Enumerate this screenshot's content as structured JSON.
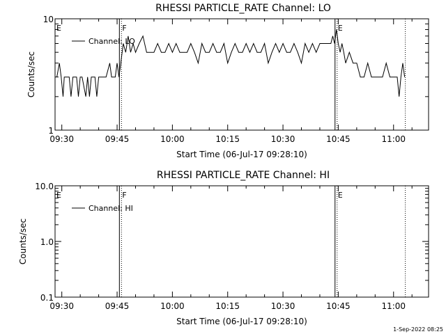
{
  "footer": "1-Sep-2022 08:25",
  "chart_data": [
    {
      "type": "line",
      "title": "RHESSI PARTICLE_RATE Channel: LO",
      "xlabel": "Start Time (06-Jul-17 09:28:10)",
      "ylabel": "Counts/sec",
      "yscale": "log",
      "ylim": [
        1,
        10
      ],
      "ytick_labels": [
        "1",
        "10"
      ],
      "xlim": [
        "09:28:10",
        "11:09:30"
      ],
      "xtick_labels": [
        "09:30",
        "09:45",
        "10:00",
        "10:15",
        "10:30",
        "10:45",
        "11:00"
      ],
      "legend": {
        "position": "top-left",
        "entries": [
          "Channel: LO"
        ]
      },
      "markers": [
        {
          "label": "E",
          "time": "09:28:10",
          "style": "none"
        },
        {
          "label": "F",
          "time": "09:46:00",
          "style": "solid+dotted"
        },
        {
          "label": "E",
          "time": "10:44:30",
          "style": "solid+dotted"
        },
        {
          "label": "",
          "time": "11:03:00",
          "style": "dotted"
        }
      ],
      "series": [
        {
          "name": "Channel: LO",
          "x": [
            "09:28:40",
            "09:29:20",
            "09:29:50",
            "09:30:20",
            "09:30:40",
            "09:31:10",
            "09:32:00",
            "09:32:30",
            "09:33:00",
            "09:34:00",
            "09:34:30",
            "09:35:00",
            "09:35:30",
            "09:36:30",
            "09:37:00",
            "09:37:30",
            "09:38:00",
            "09:39:00",
            "09:39:30",
            "09:40:00",
            "09:40:30",
            "09:41:00",
            "09:41:30",
            "09:42:00",
            "09:43:00",
            "09:43:30",
            "09:44:00",
            "09:44:30",
            "09:45:00",
            "09:45:30",
            "09:46:00",
            "09:46:40",
            "09:47:20",
            "09:48:00",
            "09:48:40",
            "09:49:20",
            "09:50:00",
            "09:51:00",
            "09:52:00",
            "09:53:00",
            "09:54:00",
            "09:55:00",
            "09:56:00",
            "09:57:00",
            "09:58:00",
            "09:59:00",
            "10:00:00",
            "10:01:00",
            "10:02:00",
            "10:03:00",
            "10:04:00",
            "10:05:00",
            "10:06:00",
            "10:07:00",
            "10:08:00",
            "10:09:00",
            "10:10:00",
            "10:11:00",
            "10:12:00",
            "10:13:00",
            "10:14:00",
            "10:15:00",
            "10:16:00",
            "10:17:00",
            "10:18:00",
            "10:19:00",
            "10:20:00",
            "10:21:00",
            "10:22:00",
            "10:23:00",
            "10:24:00",
            "10:25:00",
            "10:26:00",
            "10:27:00",
            "10:28:00",
            "10:29:00",
            "10:30:00",
            "10:31:00",
            "10:32:00",
            "10:33:00",
            "10:34:00",
            "10:35:00",
            "10:36:00",
            "10:37:00",
            "10:38:00",
            "10:39:00",
            "10:40:00",
            "10:41:00",
            "10:42:00",
            "10:43:00",
            "10:43:30",
            "10:44:00",
            "10:44:30",
            "10:45:00",
            "10:45:30",
            "10:46:00",
            "10:46:30",
            "10:47:00",
            "10:48:00",
            "10:49:00",
            "10:50:00",
            "10:51:00",
            "10:52:00",
            "10:53:00",
            "10:54:00",
            "10:55:00",
            "10:56:00",
            "10:57:00",
            "10:58:00",
            "10:59:00",
            "11:00:00",
            "11:01:00",
            "11:01:30",
            "11:02:00",
            "11:02:30",
            "11:03:00"
          ],
          "y": [
            3,
            4,
            3,
            2,
            3,
            3,
            3,
            2,
            3,
            3,
            2,
            3,
            3,
            2,
            3,
            2,
            3,
            3,
            2,
            3,
            3,
            3,
            3,
            3,
            4,
            3,
            3,
            3,
            4,
            3,
            4,
            6,
            5,
            7,
            5,
            6,
            5,
            6,
            7,
            5,
            5,
            5,
            6,
            5,
            5,
            6,
            5,
            6,
            5,
            5,
            5,
            6,
            5,
            4,
            6,
            5,
            5,
            6,
            5,
            5,
            6,
            4,
            5,
            6,
            5,
            5,
            6,
            5,
            6,
            5,
            5,
            6,
            4,
            5,
            6,
            5,
            6,
            5,
            5,
            6,
            5,
            4,
            6,
            5,
            6,
            5,
            6,
            6,
            6,
            6,
            7,
            6,
            8,
            6,
            5,
            6,
            5,
            4,
            5,
            4,
            4,
            3,
            3,
            4,
            3,
            3,
            3,
            3,
            4,
            3,
            3,
            3,
            2,
            3,
            4,
            3
          ]
        }
      ]
    },
    {
      "type": "line",
      "title": "RHESSI PARTICLE_RATE Channel: HI",
      "xlabel": "Start Time (06-Jul-17 09:28:10)",
      "ylabel": "Counts/sec",
      "yscale": "log",
      "ylim": [
        0.1,
        10
      ],
      "ytick_labels": [
        "0.1",
        "1.0",
        "10.0"
      ],
      "xlim": [
        "09:28:10",
        "11:09:30"
      ],
      "xtick_labels": [
        "09:30",
        "09:45",
        "10:00",
        "10:15",
        "10:30",
        "10:45",
        "11:00"
      ],
      "legend": {
        "position": "top-left",
        "entries": [
          "Channel: HI"
        ]
      },
      "markers": [
        {
          "label": "E",
          "time": "09:28:10",
          "style": "none"
        },
        {
          "label": "F",
          "time": "09:46:00",
          "style": "solid+dotted"
        },
        {
          "label": "E",
          "time": "10:44:30",
          "style": "solid+dotted"
        },
        {
          "label": "",
          "time": "11:03:00",
          "style": "dotted"
        }
      ],
      "series": [
        {
          "name": "Channel: HI",
          "x": [],
          "y": []
        }
      ]
    }
  ]
}
